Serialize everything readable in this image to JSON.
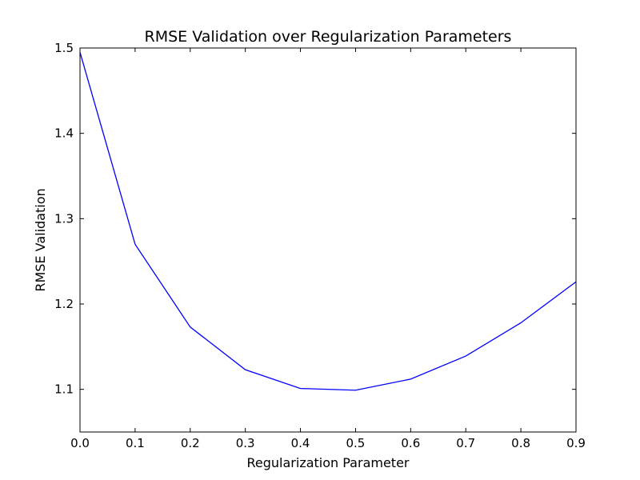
{
  "chart_data": {
    "type": "line",
    "title": "RMSE Validation over Regularization Parameters",
    "xlabel": "Regularization Parameter",
    "ylabel": "RMSE Validation",
    "xlim": [
      0.0,
      0.9
    ],
    "ylim": [
      1.05,
      1.5
    ],
    "x_ticks": [
      0.0,
      0.1,
      0.2,
      0.3,
      0.4,
      0.5,
      0.6,
      0.7,
      0.8,
      0.9
    ],
    "x_tick_labels": [
      "0.0",
      "0.1",
      "0.2",
      "0.3",
      "0.4",
      "0.5",
      "0.6",
      "0.7",
      "0.8",
      "0.9"
    ],
    "y_ticks": [
      1.1,
      1.2,
      1.3,
      1.4,
      1.5
    ],
    "y_tick_labels": [
      "1.1",
      "1.2",
      "1.3",
      "1.4",
      "1.5"
    ],
    "grid": false,
    "series": [
      {
        "color": "#0000ff",
        "x": [
          0.0,
          0.1,
          0.2,
          0.3,
          0.4,
          0.5,
          0.6,
          0.7,
          0.8,
          0.9
        ],
        "y": [
          1.495,
          1.27,
          1.173,
          1.123,
          1.101,
          1.099,
          1.112,
          1.139,
          1.178,
          1.226
        ]
      }
    ]
  }
}
